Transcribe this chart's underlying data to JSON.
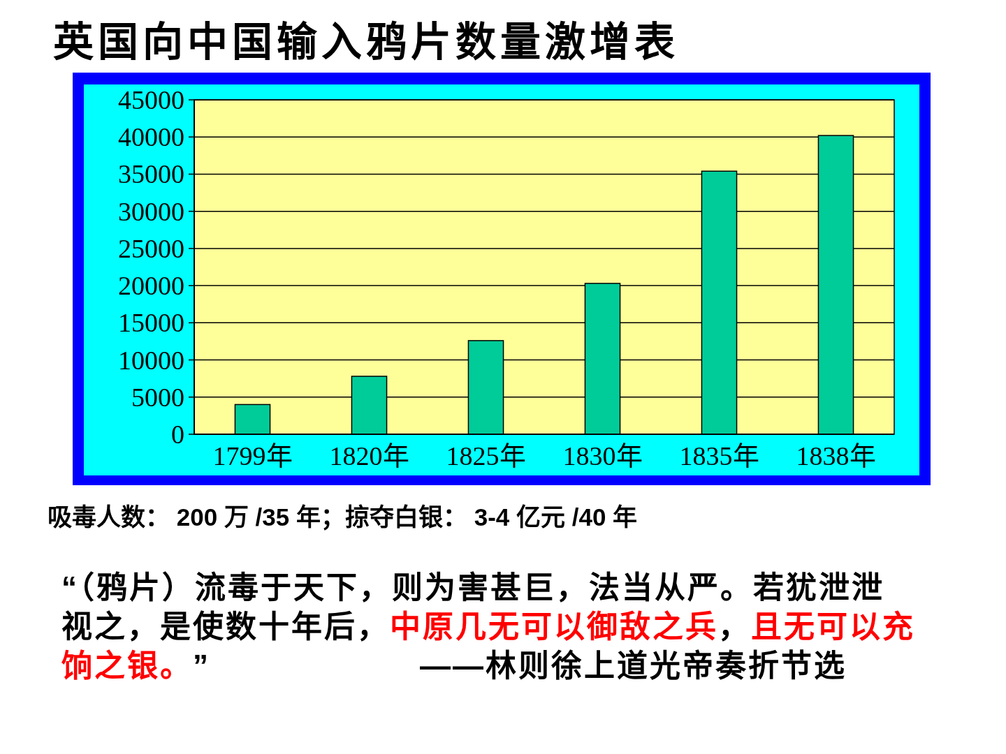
{
  "chart_data": {
    "type": "bar",
    "title": "英国向中国输入鸦片数量激增表",
    "categories": [
      "1799年",
      "1820年",
      "1825年",
      "1830年",
      "1835年",
      "1838年"
    ],
    "values": [
      4000,
      7800,
      12600,
      20300,
      35400,
      40200
    ],
    "color": "#00cc99",
    "ylim": [
      0,
      45000
    ],
    "yticks": [
      0,
      5000,
      10000,
      15000,
      20000,
      25000,
      30000,
      35000,
      40000,
      45000
    ],
    "grid": "y",
    "annotations": [
      "吸毒人数： 200 万 /35 年；掠夺白银： 3-4 亿元 /40 年",
      "“（鸦片）流毒于天下，则为害甚巨，法当从严。若犹泄泄",
      "视之，是使数十年后，",
      "中原几无可以御敌之兵",
      "，",
      "且无可以充",
      "饷之银。",
      "”",
      "——林则徐上道光帝奏折节选"
    ]
  }
}
